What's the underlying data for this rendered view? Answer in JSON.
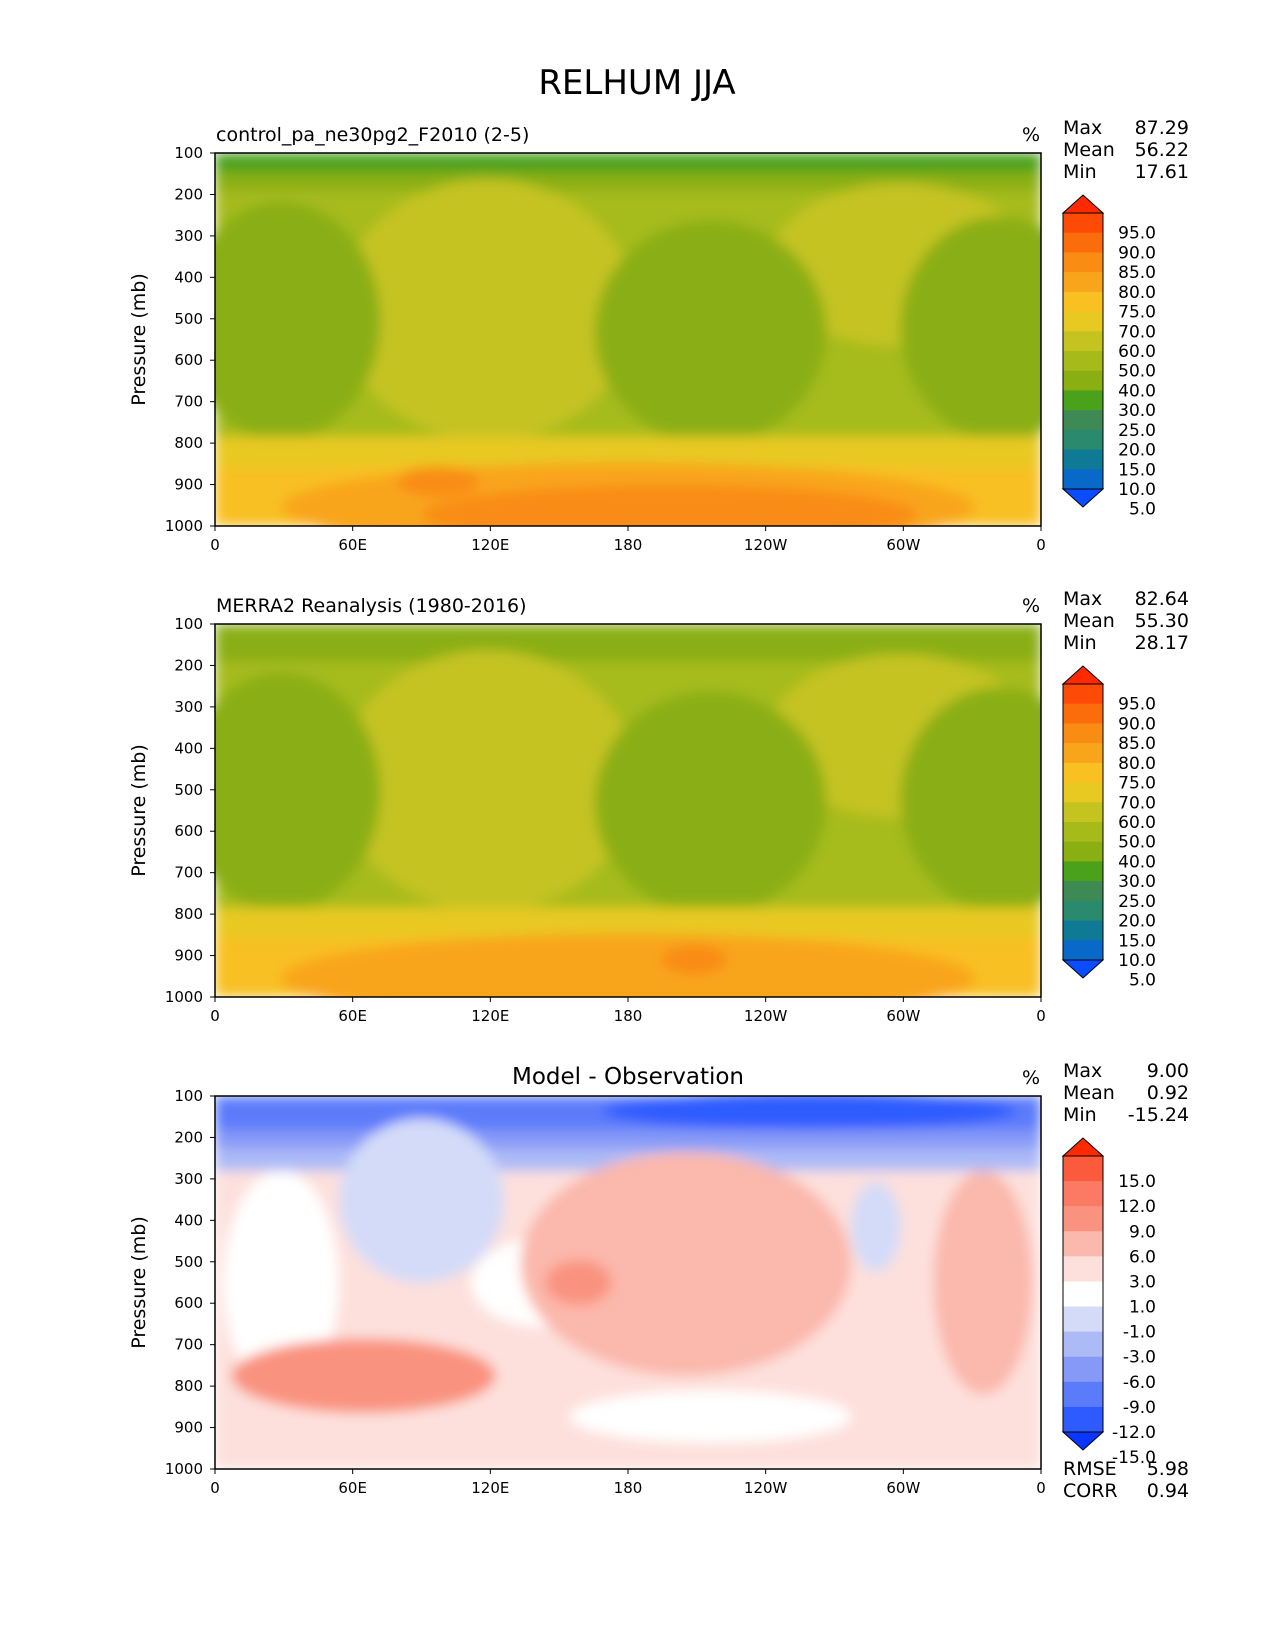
{
  "figure_title": "RELHUM JJA",
  "chart_data": [
    {
      "type": "heatmap",
      "title": "control_pa_ne30pg2_F2010 (2-5)",
      "units": "%",
      "ylabel": "Pressure (mb)",
      "xlabel": "",
      "x_ticks": [
        "0",
        "60E",
        "120E",
        "180",
        "120W",
        "60W",
        "0"
      ],
      "y_ticks": [
        "100",
        "200",
        "300",
        "400",
        "500",
        "600",
        "700",
        "800",
        "900",
        "1000"
      ],
      "x_range_deg_east": [
        0,
        360
      ],
      "y_range_mb": [
        100,
        1000
      ],
      "stats": [
        {
          "label": "Max",
          "value": "87.29"
        },
        {
          "label": "Mean",
          "value": "56.22"
        },
        {
          "label": "Min",
          "value": "17.61"
        }
      ],
      "colorbar": {
        "levels": [
          "5.0",
          "10.0",
          "15.0",
          "20.0",
          "25.0",
          "30.0",
          "40.0",
          "50.0",
          "60.0",
          "70.0",
          "75.0",
          "80.0",
          "85.0",
          "90.0",
          "95.0"
        ],
        "colors": [
          "#0a4cff",
          "#0869c8",
          "#0e7a96",
          "#2a8a6e",
          "#3d8a55",
          "#4aa11b",
          "#8aaf12",
          "#a6bb1a",
          "#c4c320",
          "#e8c922",
          "#f8c021",
          "#f9a51b",
          "#f98c12",
          "#fb6c0b",
          "#fd4a07",
          "#ff2a00"
        ]
      },
      "field_summary": "Moist (75-90%) near the surface (850-1000 mb) across all longitudes, peaking near 100E; mid-troposphere 40-60% with drier 30-40% pockets near 40E, 150W and 40W; driest (20-30%) near 100-150 mb."
    },
    {
      "type": "heatmap",
      "title": "MERRA2 Reanalysis (1980-2016)",
      "units": "%",
      "ylabel": "Pressure (mb)",
      "xlabel": "",
      "x_ticks": [
        "0",
        "60E",
        "120E",
        "180",
        "120W",
        "60W",
        "0"
      ],
      "y_ticks": [
        "100",
        "200",
        "300",
        "400",
        "500",
        "600",
        "700",
        "800",
        "900",
        "1000"
      ],
      "x_range_deg_east": [
        0,
        360
      ],
      "y_range_mb": [
        100,
        1000
      ],
      "stats": [
        {
          "label": "Max",
          "value": "82.64"
        },
        {
          "label": "Mean",
          "value": "55.30"
        },
        {
          "label": "Min",
          "value": "28.17"
        }
      ],
      "colorbar": {
        "levels": [
          "5.0",
          "10.0",
          "15.0",
          "20.0",
          "25.0",
          "30.0",
          "40.0",
          "50.0",
          "60.0",
          "70.0",
          "75.0",
          "80.0",
          "85.0",
          "90.0",
          "95.0"
        ],
        "colors": [
          "#0a4cff",
          "#0869c8",
          "#0e7a96",
          "#2a8a6e",
          "#3d8a55",
          "#4aa11b",
          "#8aaf12",
          "#a6bb1a",
          "#c4c320",
          "#e8c922",
          "#f8c021",
          "#f9a51b",
          "#f98c12",
          "#fb6c0b",
          "#fd4a07",
          "#ff2a00"
        ]
      },
      "field_summary": "Similar structure: 75-85% near the surface, 40-60% aloft, drier 30-40% centers near 40E, 150W and 30W around 500 mb."
    },
    {
      "type": "heatmap",
      "title": "Model - Observation",
      "units": "%",
      "ylabel": "Pressure (mb)",
      "xlabel": "",
      "x_ticks": [
        "0",
        "60E",
        "120E",
        "180",
        "120W",
        "60W",
        "0"
      ],
      "y_ticks": [
        "100",
        "200",
        "300",
        "400",
        "500",
        "600",
        "700",
        "800",
        "900",
        "1000"
      ],
      "x_range_deg_east": [
        0,
        360
      ],
      "y_range_mb": [
        100,
        1000
      ],
      "stats": [
        {
          "label": "Max",
          "value": "9.00"
        },
        {
          "label": "Mean",
          "value": "0.92"
        },
        {
          "label": "Min",
          "value": "-15.24"
        }
      ],
      "metrics": [
        {
          "label": "RMSE",
          "value": "5.98"
        },
        {
          "label": "CORR",
          "value": "0.94"
        }
      ],
      "colorbar": {
        "levels": [
          "-15.0",
          "-12.0",
          "-9.0",
          "-6.0",
          "-3.0",
          "-1.0",
          "1.0",
          "3.0",
          "6.0",
          "9.0",
          "12.0",
          "15.0"
        ],
        "colors": [
          "#0a36ff",
          "#2e5bff",
          "#5b7cfa",
          "#8699f7",
          "#acbaf6",
          "#d3dbf8",
          "#ffffff",
          "#fde0dc",
          "#fbb8ac",
          "#f9937f",
          "#fa7a63",
          "#fb5a3d",
          "#ff2a00"
        ]
      },
      "field_summary": "Negative biases (-3 to -15) above 250 mb, strongest -12 to -15 near 100-150 mb; positive biases (+1 to +9) through most of the troposphere, largest (+6 to +9) near 40-120E at 750-850 mb and near 165E at 550 mb."
    }
  ]
}
